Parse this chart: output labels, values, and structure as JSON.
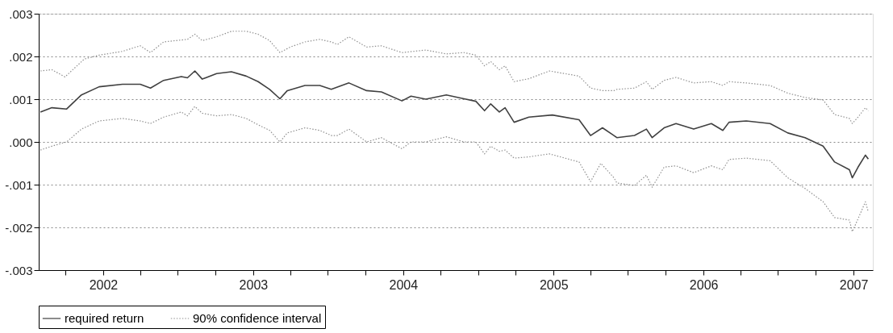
{
  "chart_data": {
    "type": "line",
    "xlim": [
      "2001-07-28",
      "2007-02-17"
    ],
    "xticks": [
      {
        "value": "2001-10-01",
        "label": null
      },
      {
        "value": "2002-01-01",
        "label": "2002"
      },
      {
        "value": "2002-04-01",
        "label": null
      },
      {
        "value": "2002-07-01",
        "label": null
      },
      {
        "value": "2002-10-01",
        "label": null
      },
      {
        "value": "2003-01-01",
        "label": "2003"
      },
      {
        "value": "2003-04-01",
        "label": null
      },
      {
        "value": "2003-07-01",
        "label": null
      },
      {
        "value": "2003-10-01",
        "label": null
      },
      {
        "value": "2004-01-01",
        "label": "2004"
      },
      {
        "value": "2004-04-01",
        "label": null
      },
      {
        "value": "2004-07-01",
        "label": null
      },
      {
        "value": "2004-10-01",
        "label": null
      },
      {
        "value": "2005-01-01",
        "label": "2005"
      },
      {
        "value": "2005-04-01",
        "label": null
      },
      {
        "value": "2005-07-01",
        "label": null
      },
      {
        "value": "2005-10-01",
        "label": null
      },
      {
        "value": "2006-01-01",
        "label": "2006"
      },
      {
        "value": "2006-04-01",
        "label": null
      },
      {
        "value": "2006-07-01",
        "label": null
      },
      {
        "value": "2006-10-01",
        "label": null
      },
      {
        "value": "2007-01-01",
        "label": "2007"
      }
    ],
    "ylim": [
      -0.003,
      0.003
    ],
    "yticks": [
      {
        "value": -0.003,
        "label": "-.003"
      },
      {
        "value": -0.002,
        "label": "-.002"
      },
      {
        "value": -0.001,
        "label": "-.001"
      },
      {
        "value": 0,
        "label": ".000"
      },
      {
        "value": 0.001,
        "label": ".001"
      },
      {
        "value": 0.002,
        "label": ".002"
      },
      {
        "value": 0.003,
        "label": ".003"
      }
    ],
    "grid": "y",
    "legend": "bottom",
    "marker": "none",
    "series": [
      {
        "name": "required return",
        "color": "#404040",
        "line_style": "solid",
        "x": [
          "2001-08-01",
          "2001-08-29",
          "2001-10-04",
          "2001-11-09",
          "2001-12-22",
          "2002-02-17",
          "2002-04-01",
          "2002-04-26",
          "2002-05-28",
          "2002-07-10",
          "2002-07-25",
          "2002-08-12",
          "2002-08-30",
          "2002-10-04",
          "2002-11-09",
          "2002-12-15",
          "2003-01-13",
          "2003-02-10",
          "2003-03-07",
          "2003-03-25",
          "2003-05-07",
          "2003-06-12",
          "2003-07-10",
          "2003-08-22",
          "2003-10-04",
          "2003-11-09",
          "2003-12-29",
          "2004-01-20",
          "2004-02-25",
          "2004-04-15",
          "2004-05-28",
          "2004-06-26",
          "2004-07-17",
          "2004-08-01",
          "2004-08-22",
          "2004-09-05",
          "2004-09-27",
          "2004-11-02",
          "2004-12-29",
          "2005-03-04",
          "2005-04-01",
          "2005-04-30",
          "2005-05-28",
          "2005-06-04",
          "2005-07-17",
          "2005-08-15",
          "2005-08-29",
          "2005-09-27",
          "2005-10-26",
          "2005-12-08",
          "2006-01-20",
          "2006-02-17",
          "2006-03-04",
          "2006-04-15",
          "2006-06-12",
          "2006-07-25",
          "2006-09-05",
          "2006-10-19",
          "2006-11-16",
          "2006-12-22",
          "2006-12-29",
          "2007-01-12",
          "2007-01-30",
          "2007-02-06"
        ],
        "values": [
          0.0007,
          0.0008,
          0.00077,
          0.0011,
          0.00129,
          0.00135,
          0.00135,
          0.00126,
          0.00144,
          0.00153,
          0.0015,
          0.00166,
          0.00147,
          0.0016,
          0.00164,
          0.00154,
          0.00141,
          0.00123,
          0.00101,
          0.0012,
          0.00132,
          0.00132,
          0.00123,
          0.00138,
          0.0012,
          0.00117,
          0.00096,
          0.00107,
          0.001,
          0.0011,
          0.00101,
          0.00095,
          0.00073,
          0.00089,
          0.0007,
          0.0008,
          0.00046,
          0.00058,
          0.00063,
          0.00052,
          0.00015,
          0.00033,
          0.00015,
          0.0001,
          0.00015,
          0.0003,
          0.0001,
          0.00033,
          0.00043,
          0.0003,
          0.00043,
          0.00027,
          0.00046,
          0.00049,
          0.00043,
          0.00021,
          0.0001,
          -0.0001,
          -0.00047,
          -0.00065,
          -0.00084,
          -0.00059,
          -0.00031,
          -0.0004
        ]
      },
      {
        "name": "90% confidence interval",
        "color": "#909090",
        "line_style": "dotted",
        "x": [
          "2001-08-01",
          "2001-08-29",
          "2001-09-30",
          "2001-11-16",
          "2001-12-22",
          "2002-02-17",
          "2002-04-01",
          "2002-04-26",
          "2002-05-28",
          "2002-07-25",
          "2002-08-12",
          "2002-08-30",
          "2002-10-04",
          "2002-11-09",
          "2002-12-15",
          "2003-01-13",
          "2003-02-10",
          "2003-03-07",
          "2003-04-01",
          "2003-05-07",
          "2003-06-12",
          "2003-07-10",
          "2003-07-25",
          "2003-08-22",
          "2003-10-04",
          "2003-11-09",
          "2003-12-29",
          "2004-02-25",
          "2004-04-15",
          "2004-05-28",
          "2004-06-26",
          "2004-07-17",
          "2004-08-01",
          "2004-08-22",
          "2004-09-05",
          "2004-09-27",
          "2004-11-02",
          "2004-12-22",
          "2005-03-04",
          "2005-04-01",
          "2005-04-30",
          "2005-05-28",
          "2005-06-04",
          "2005-07-17",
          "2005-08-15",
          "2005-08-29",
          "2005-09-27",
          "2005-10-26",
          "2005-12-08",
          "2006-01-20",
          "2006-02-17",
          "2006-03-04",
          "2006-04-15",
          "2006-06-12",
          "2006-07-25",
          "2006-09-05",
          "2006-10-19",
          "2006-11-16",
          "2006-12-22",
          "2006-12-29",
          "2007-01-12",
          "2007-01-30",
          "2007-02-06"
        ],
        "values": [
          0.00166,
          0.00169,
          0.00152,
          0.00194,
          0.00203,
          0.00212,
          0.00225,
          0.00209,
          0.00234,
          0.0024,
          0.00252,
          0.00237,
          0.00246,
          0.00259,
          0.00259,
          0.00252,
          0.00237,
          0.00209,
          0.00222,
          0.00234,
          0.0024,
          0.00234,
          0.00228,
          0.00246,
          0.00222,
          0.00225,
          0.00209,
          0.00215,
          0.00206,
          0.00209,
          0.00203,
          0.00178,
          0.00188,
          0.00169,
          0.00178,
          0.00141,
          0.00148,
          0.00166,
          0.00154,
          0.00126,
          0.0012,
          0.0012,
          0.00123,
          0.00126,
          0.00141,
          0.00123,
          0.00144,
          0.00151,
          0.00138,
          0.00141,
          0.00132,
          0.00141,
          0.00138,
          0.00132,
          0.00114,
          0.00104,
          0.00098,
          0.00064,
          0.00055,
          0.00043,
          0.00058,
          0.0008,
          0.00073
        ]
      },
      {
        "color": "#909090",
        "line_style": "dotted",
        "x": [
          "2001-08-01",
          "2001-08-29",
          "2001-10-04",
          "2001-11-09",
          "2001-12-22",
          "2002-02-17",
          "2002-04-01",
          "2002-04-26",
          "2002-05-28",
          "2002-07-10",
          "2002-07-25",
          "2002-08-12",
          "2002-08-30",
          "2002-10-04",
          "2002-11-09",
          "2002-12-15",
          "2003-01-13",
          "2003-02-10",
          "2003-03-07",
          "2003-03-25",
          "2003-05-07",
          "2003-06-12",
          "2003-07-10",
          "2003-07-25",
          "2003-08-22",
          "2003-10-04",
          "2003-11-09",
          "2003-12-29",
          "2004-01-20",
          "2004-02-25",
          "2004-04-15",
          "2004-05-28",
          "2004-06-26",
          "2004-07-17",
          "2004-08-01",
          "2004-08-22",
          "2004-09-05",
          "2004-09-27",
          "2004-11-02",
          "2004-12-22",
          "2005-03-04",
          "2005-04-01",
          "2005-04-26",
          "2005-05-28",
          "2005-06-04",
          "2005-07-17",
          "2005-08-15",
          "2005-08-29",
          "2005-09-27",
          "2005-10-26",
          "2005-12-08",
          "2006-01-20",
          "2006-02-17",
          "2006-03-04",
          "2006-04-15",
          "2006-06-12",
          "2006-07-25",
          "2006-09-05",
          "2006-10-19",
          "2006-11-16",
          "2006-12-22",
          "2006-12-29",
          "2007-01-12",
          "2007-01-30",
          "2007-02-06"
        ],
        "values": [
          -0.00019,
          -0.0001,
          0,
          0.0003,
          0.00049,
          0.00055,
          0.00049,
          0.00043,
          0.00058,
          0.0007,
          0.00061,
          0.00083,
          0.00067,
          0.00061,
          0.00064,
          0.00055,
          0.0004,
          0.00027,
          0,
          0.00021,
          0.00033,
          0.00027,
          0.00015,
          0.00015,
          0.0003,
          0,
          0.0001,
          -0.00016,
          0,
          0,
          0.00012,
          0,
          0,
          -0.00028,
          -0.0001,
          -0.00022,
          -0.00019,
          -0.00038,
          -0.00035,
          -0.00028,
          -0.00047,
          -0.00093,
          -0.0005,
          -0.00084,
          -0.00096,
          -0.00102,
          -0.00078,
          -0.00106,
          -0.00059,
          -0.00056,
          -0.00072,
          -0.00056,
          -0.00065,
          -0.00041,
          -0.00038,
          -0.00044,
          -0.00084,
          -0.00109,
          -0.0014,
          -0.00177,
          -0.00183,
          -0.0021,
          -0.0018,
          -0.0014,
          -0.00164
        ]
      }
    ]
  }
}
